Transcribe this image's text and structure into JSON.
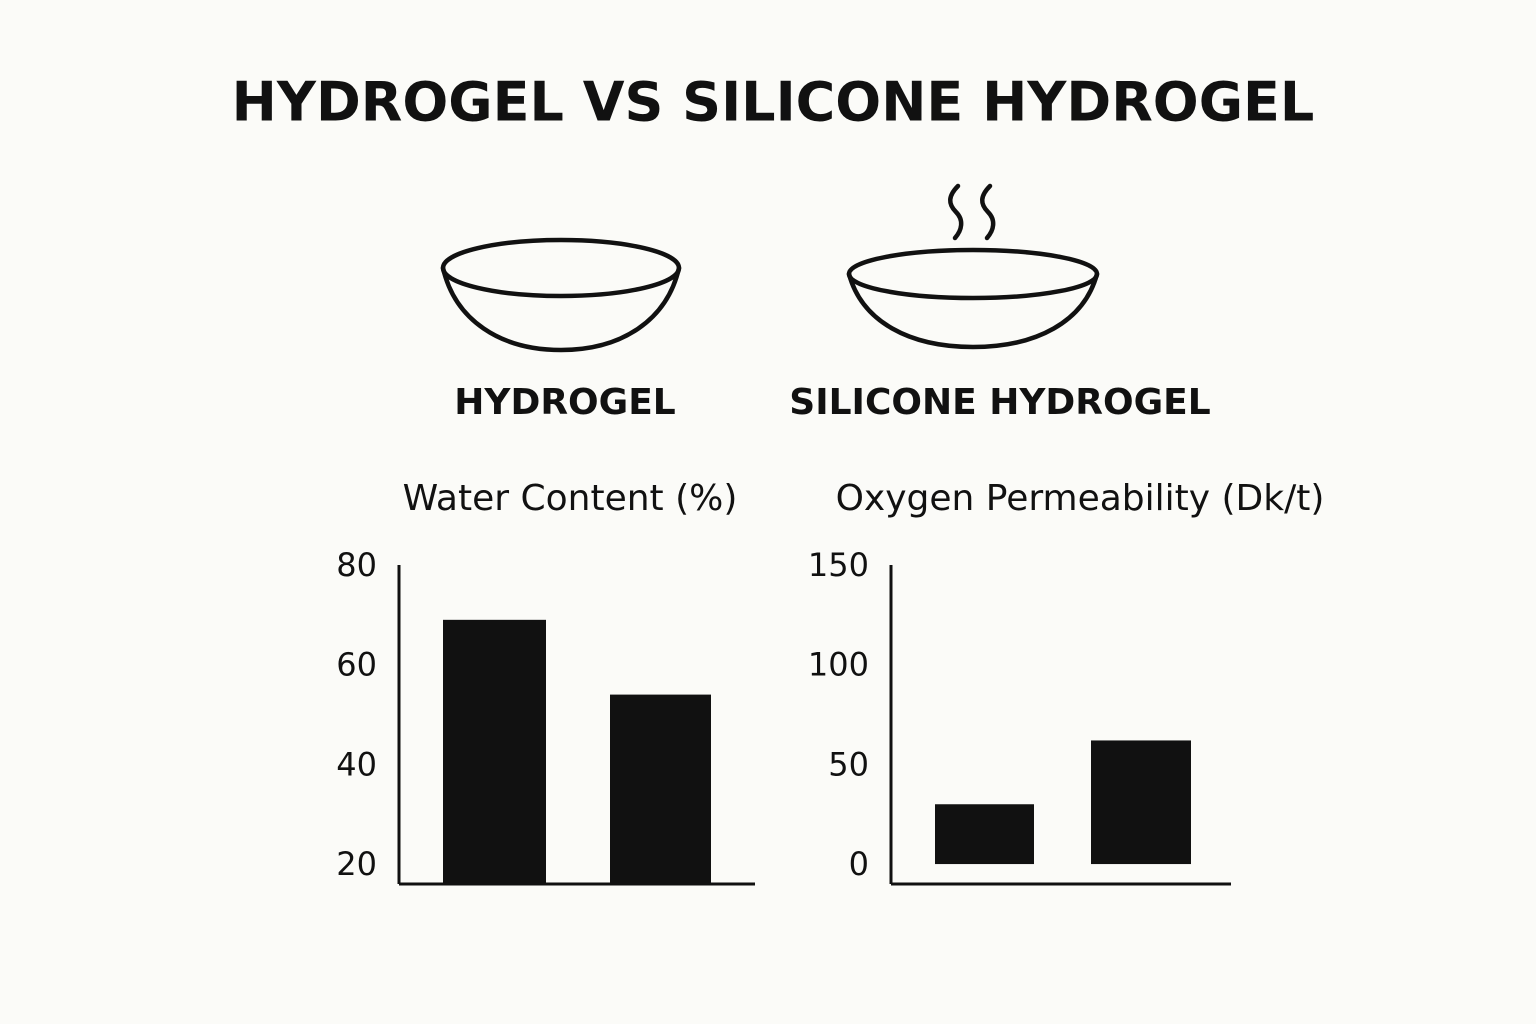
{
  "header": {
    "title": "HYDROGEL VS SILICONE HYDROGEL"
  },
  "lenses": [
    {
      "label": "HYDROGEL"
    },
    {
      "label": "SILICONE HYDROGEL"
    }
  ],
  "chart_data": [
    {
      "type": "bar",
      "title": "Water Content (%)",
      "categories": [
        null,
        null
      ],
      "values": [
        69,
        54
      ],
      "color": "#111111",
      "ylim": [
        16,
        80
      ],
      "yticks": [
        80,
        60,
        40,
        20
      ],
      "grid": false
    },
    {
      "type": "bar",
      "title": "Oxygen Permeability (Dk/t)",
      "categories": [
        null,
        null
      ],
      "values": [
        30,
        62
      ],
      "color": "#111111",
      "ylim": [
        -10,
        150
      ],
      "yticks": [
        150,
        100,
        50,
        0
      ],
      "grid": false
    }
  ]
}
